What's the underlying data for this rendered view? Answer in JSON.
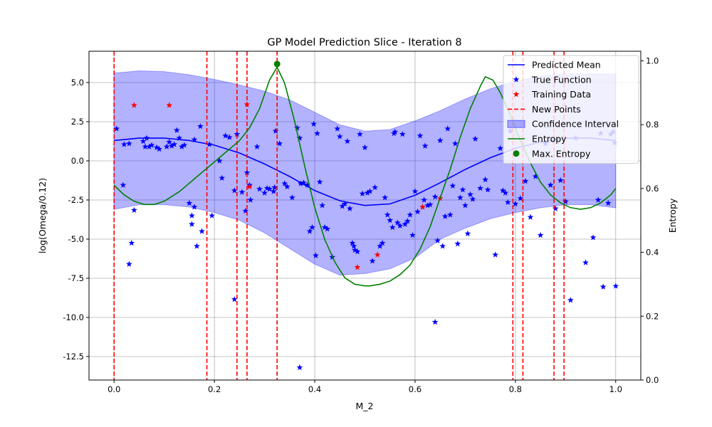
{
  "chart_data": {
    "type": "line",
    "title": "GP Model Prediction Slice - Iteration 8",
    "xlabel": "M_2",
    "ylabel": "log(Omega/0.12)",
    "y2label": "Entropy",
    "xlim": [
      -0.05,
      1.05
    ],
    "ylim": [
      -14.0,
      7.0
    ],
    "y2lim": [
      0.0,
      1.03
    ],
    "xticks": [
      "0.0",
      "0.2",
      "0.4",
      "0.6",
      "0.8",
      "1.0"
    ],
    "yticks": [
      "5.0",
      "2.5",
      "0.0",
      "-2.5",
      "-5.0",
      "-7.5",
      "-10.0",
      "-12.5"
    ],
    "y2ticks": [
      "0.0",
      "0.2",
      "0.4",
      "0.6",
      "0.8",
      "1.0"
    ],
    "grid": true,
    "legend_position": "top-right",
    "colors": {
      "predicted_mean": "#0000ff",
      "true_function": "#0000ff",
      "training_data": "#ff0000",
      "new_points": "#ff0000",
      "confidence": "#0000ff",
      "entropy": "#008000",
      "max_entropy": "#008000"
    },
    "legend": [
      {
        "label": "Predicted Mean",
        "kind": "line"
      },
      {
        "label": "True Function",
        "kind": "star-blue"
      },
      {
        "label": "Training Data",
        "kind": "star-red"
      },
      {
        "label": "New Points",
        "kind": "dashed"
      },
      {
        "label": "Confidence Interval",
        "kind": "patch"
      },
      {
        "label": "Entropy",
        "kind": "line-green"
      },
      {
        "label": "Max. Entropy",
        "kind": "dot-green"
      }
    ],
    "predicted_mean": {
      "x": [
        0.0,
        0.05,
        0.1,
        0.15,
        0.2,
        0.25,
        0.3,
        0.35,
        0.4,
        0.45,
        0.5,
        0.55,
        0.6,
        0.65,
        0.7,
        0.75,
        0.8,
        0.85,
        0.9,
        0.95,
        1.0
      ],
      "y": [
        1.3,
        1.45,
        1.45,
        1.3,
        1.0,
        0.5,
        -0.2,
        -1.0,
        -1.9,
        -2.55,
        -2.85,
        -2.75,
        -2.2,
        -1.4,
        -0.55,
        0.2,
        0.8,
        1.2,
        1.45,
        1.45,
        1.3
      ]
    },
    "confidence_upper": {
      "x": [
        0.0,
        0.05,
        0.1,
        0.15,
        0.2,
        0.25,
        0.3,
        0.35,
        0.4,
        0.45,
        0.5,
        0.55,
        0.6,
        0.65,
        0.7,
        0.75,
        0.8,
        0.85,
        0.9,
        0.95,
        1.0
      ],
      "y": [
        5.6,
        5.75,
        5.7,
        5.5,
        5.2,
        4.85,
        4.45,
        3.9,
        3.1,
        2.3,
        1.9,
        2.0,
        2.55,
        3.2,
        3.95,
        4.6,
        5.1,
        5.4,
        5.55,
        5.55,
        5.55
      ]
    },
    "confidence_lower": {
      "x": [
        0.0,
        0.05,
        0.1,
        0.15,
        0.2,
        0.25,
        0.3,
        0.35,
        0.4,
        0.45,
        0.5,
        0.55,
        0.6,
        0.65,
        0.7,
        0.75,
        0.8,
        0.85,
        0.9,
        0.95,
        1.0
      ],
      "y": [
        -3.1,
        -2.8,
        -2.8,
        -2.95,
        -3.3,
        -3.8,
        -4.6,
        -5.6,
        -6.6,
        -7.3,
        -7.2,
        -6.9,
        -6.2,
        -5.0,
        -4.3,
        -3.7,
        -3.3,
        -3.0,
        -2.8,
        -2.8,
        -3.0
      ]
    },
    "entropy": {
      "x": [
        0.0,
        0.02,
        0.04,
        0.06,
        0.08,
        0.1,
        0.13,
        0.16,
        0.19,
        0.22,
        0.25,
        0.27,
        0.29,
        0.31,
        0.325,
        0.34,
        0.36,
        0.38,
        0.4,
        0.42,
        0.44,
        0.46,
        0.48,
        0.5,
        0.51,
        0.53,
        0.55,
        0.57,
        0.59,
        0.61,
        0.63,
        0.65,
        0.67,
        0.69,
        0.71,
        0.73,
        0.74,
        0.755,
        0.77,
        0.79,
        0.81,
        0.83,
        0.85,
        0.87,
        0.89,
        0.91,
        0.93,
        0.95,
        0.97,
        0.99,
        1.0
      ],
      "y": [
        0.61,
        0.58,
        0.56,
        0.55,
        0.55,
        0.56,
        0.59,
        0.63,
        0.67,
        0.71,
        0.75,
        0.79,
        0.85,
        0.94,
        0.98,
        0.93,
        0.81,
        0.67,
        0.54,
        0.44,
        0.37,
        0.32,
        0.3,
        0.295,
        0.295,
        0.3,
        0.31,
        0.33,
        0.36,
        0.41,
        0.48,
        0.57,
        0.66,
        0.76,
        0.85,
        0.92,
        0.95,
        0.94,
        0.9,
        0.83,
        0.75,
        0.68,
        0.62,
        0.58,
        0.555,
        0.54,
        0.535,
        0.54,
        0.555,
        0.58,
        0.6
      ]
    },
    "max_entropy": {
      "x": 0.325,
      "y": 0.99
    },
    "new_points_x": [
      0.0,
      0.185,
      0.245,
      0.265,
      0.325,
      0.795,
      0.815,
      0.877,
      0.897
    ],
    "training_data": {
      "x": [
        0.04,
        0.11,
        0.265,
        0.27,
        0.485,
        0.525,
        0.615,
        0.65
      ],
      "y": [
        3.55,
        3.55,
        3.6,
        -1.65,
        -6.8,
        -6.0,
        -2.95,
        -2.4
      ]
    },
    "true_function": {
      "x": [
        0.005,
        0.018,
        0.02,
        0.03,
        0.035,
        0.03,
        0.04,
        0.058,
        0.062,
        0.065,
        0.07,
        0.075,
        0.085,
        0.09,
        0.105,
        0.11,
        0.115,
        0.12,
        0.125,
        0.13,
        0.135,
        0.14,
        0.15,
        0.155,
        0.155,
        0.16,
        0.165,
        0.16,
        0.172,
        0.175,
        0.19,
        0.195,
        0.21,
        0.215,
        0.222,
        0.23,
        0.24,
        0.245,
        0.255,
        0.262,
        0.265,
        0.27,
        0.272,
        0.285,
        0.29,
        0.3,
        0.305,
        0.31,
        0.318,
        0.32,
        0.322,
        0.33,
        0.34,
        0.345,
        0.355,
        0.365,
        0.37,
        0.372,
        0.378,
        0.385,
        0.39,
        0.395,
        0.398,
        0.402,
        0.405,
        0.41,
        0.415,
        0.42,
        0.425,
        0.435,
        0.445,
        0.45,
        0.455,
        0.46,
        0.465,
        0.47,
        0.475,
        0.478,
        0.48,
        0.485,
        0.49,
        0.495,
        0.5,
        0.505,
        0.51,
        0.515,
        0.52,
        0.53,
        0.535,
        0.54,
        0.545,
        0.55,
        0.555,
        0.558,
        0.56,
        0.565,
        0.57,
        0.575,
        0.58,
        0.585,
        0.59,
        0.595,
        0.6,
        0.605,
        0.61,
        0.615,
        0.618,
        0.62,
        0.625,
        0.63,
        0.64,
        0.645,
        0.65,
        0.655,
        0.66,
        0.665,
        0.67,
        0.675,
        0.68,
        0.685,
        0.69,
        0.695,
        0.7,
        0.705,
        0.71,
        0.715,
        0.72,
        0.73,
        0.74,
        0.745,
        0.76,
        0.77,
        0.775,
        0.78,
        0.785,
        0.79,
        0.8,
        0.81,
        0.82,
        0.83,
        0.84,
        0.85,
        0.86,
        0.87,
        0.88,
        0.89,
        0.9,
        0.91,
        0.92,
        0.94,
        0.955,
        0.965,
        0.97,
        0.975,
        0.985,
        0.99,
        0.995,
        0.998,
        1.0,
        0.64,
        0.37,
        0.24
      ],
      "y": [
        2.05,
        -1.55,
        1.05,
        1.1,
        -5.25,
        -6.6,
        -3.15,
        1.25,
        0.9,
        1.45,
        0.9,
        1.0,
        0.85,
        0.75,
        0.9,
        1.2,
        0.95,
        1.05,
        1.95,
        1.45,
        0.9,
        1.0,
        -2.7,
        -3.5,
        -4.05,
        -2.95,
        -5.45,
        1.35,
        2.2,
        -4.5,
        1.05,
        -3.5,
        0.0,
        -1.1,
        1.6,
        1.5,
        -1.9,
        1.7,
        -2.0,
        -3.2,
        -0.75,
        -1.55,
        -2.5,
        0.9,
        -1.8,
        -2.05,
        -1.75,
        -1.8,
        -1.95,
        -1.7,
        1.9,
        1.1,
        -1.45,
        -1.65,
        -2.35,
        2.1,
        1.45,
        -1.45,
        -1.4,
        -1.55,
        -4.5,
        -4.25,
        2.35,
        -6.05,
        1.75,
        -1.35,
        -2.85,
        -4.25,
        -4.35,
        -6.15,
        2.05,
        1.55,
        -2.9,
        -2.75,
        1.25,
        -3.05,
        -5.25,
        -5.45,
        -5.7,
        -5.8,
        1.7,
        -2.1,
        0.85,
        -2.05,
        -1.95,
        -6.4,
        -1.7,
        -5.45,
        -5.25,
        -2.35,
        -3.45,
        -3.8,
        -4.25,
        1.75,
        1.85,
        -3.95,
        -4.15,
        1.7,
        -4.05,
        -3.85,
        -3.45,
        -4.75,
        -1.95,
        -3.25,
        1.6,
        -2.95,
        -2.5,
        0.95,
        -2.85,
        -2.8,
        -2.3,
        -5.1,
        1.3,
        -5.45,
        -3.55,
        2.05,
        -3.45,
        -1.6,
        1.1,
        -5.3,
        -2.35,
        -1.85,
        -2.85,
        -4.65,
        -2.15,
        -2.45,
        1.4,
        -1.75,
        -1.2,
        -1.85,
        -6.0,
        0.8,
        -1.9,
        -2.05,
        -2.65,
        1.9,
        -2.75,
        -2.4,
        -1.3,
        -3.6,
        -1.0,
        -4.75,
        1.1,
        -1.55,
        -3.05,
        -1.25,
        -2.6,
        -8.9,
        1.45,
        -6.5,
        -4.9,
        -2.5,
        1.75,
        -8.05,
        -2.7,
        1.7,
        1.85,
        1.15,
        -8.0,
        -10.3,
        -13.2,
        -8.85
      ]
    }
  }
}
